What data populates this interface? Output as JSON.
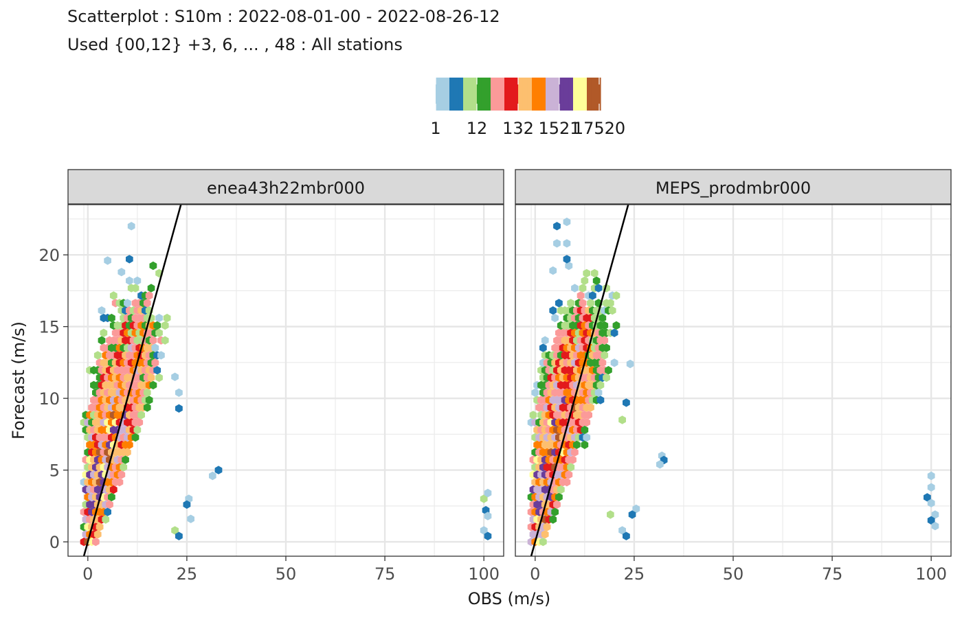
{
  "title": "Scatterplot : S10m : 2022-08-01-00 - 2022-08-26-12",
  "subtitle": "Used {00,12} +3, 6, ... , 48 : All stations",
  "legend": {
    "tick_labels": [
      "1",
      "12",
      "132",
      "1521",
      "17520"
    ],
    "colors": [
      "#a6cee3",
      "#1f78b4",
      "#b2df8a",
      "#33a02c",
      "#fb9a99",
      "#e31a1c",
      "#fdbf6f",
      "#ff7f00",
      "#cab2d6",
      "#6a3d9a",
      "#ffff99",
      "#b15928"
    ]
  },
  "chart_data": {
    "type": "hexbin-scatter",
    "xlabel": "OBS (m/s)",
    "ylabel": "Forecast (m/s)",
    "xlim": [
      -5,
      105
    ],
    "ylim": [
      -1,
      23.5
    ],
    "x_ticks": [
      0,
      25,
      50,
      75,
      100
    ],
    "y_ticks": [
      0,
      5,
      10,
      15,
      20
    ],
    "grid": true,
    "color_scale": "log count",
    "count_range": [
      1,
      17520
    ],
    "reference_line": {
      "slope": 1,
      "intercept": 0
    },
    "panels": [
      {
        "name": "enea43h22mbr000",
        "outliers": [
          [
            11,
            22
          ],
          [
            10.5,
            19.7
          ],
          [
            5,
            19.6
          ],
          [
            8.5,
            18.8
          ],
          [
            33,
            5
          ],
          [
            31.5,
            4.6
          ],
          [
            25.5,
            3
          ],
          [
            25,
            2.6
          ],
          [
            26,
            1.6
          ],
          [
            22,
            0.8
          ],
          [
            23,
            0.4
          ],
          [
            22,
            11.5
          ],
          [
            23,
            10.4
          ],
          [
            23,
            9.3
          ],
          [
            100,
            3
          ],
          [
            101,
            3.4
          ],
          [
            100.5,
            2.2
          ],
          [
            101,
            1.8
          ],
          [
            100,
            0.8
          ],
          [
            101,
            0.4
          ]
        ]
      },
      {
        "name": "MEPS_prodmbr000",
        "outliers": [
          [
            8,
            22.3
          ],
          [
            5.5,
            22
          ],
          [
            8,
            20.8
          ],
          [
            5.5,
            20.8
          ],
          [
            8,
            19.7
          ],
          [
            4.5,
            18.9
          ],
          [
            32,
            6
          ],
          [
            32.5,
            5.7
          ],
          [
            31.5,
            5.4
          ],
          [
            22,
            8.5
          ],
          [
            23,
            9.7
          ],
          [
            24,
            12.4
          ],
          [
            25.5,
            2.3
          ],
          [
            24.5,
            1.9
          ],
          [
            19,
            1.9
          ],
          [
            22,
            0.8
          ],
          [
            23,
            0.4
          ],
          [
            100,
            4.6
          ],
          [
            100,
            3.8
          ],
          [
            99,
            3.1
          ],
          [
            100,
            2.7
          ],
          [
            101,
            1.9
          ],
          [
            100,
            1.5
          ],
          [
            101,
            1.1
          ]
        ]
      }
    ]
  }
}
